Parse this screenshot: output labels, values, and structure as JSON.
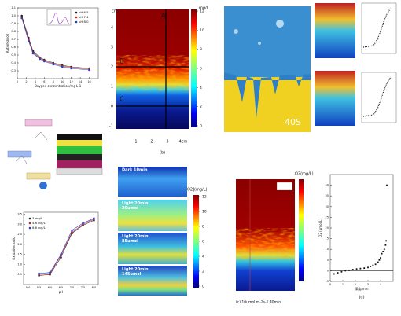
{
  "panels": {
    "oxygen_plot": {
      "x_label": "Oxygen concentration/mg L-1",
      "y_label": "Ratio/Ratio0",
      "xlim": [
        0,
        18
      ],
      "xticks": [
        0,
        2,
        4,
        6,
        8,
        10,
        12,
        14,
        16
      ],
      "ylim": [
        0.2,
        1.1
      ],
      "yticks": [
        0.3,
        0.4,
        0.5,
        0.6,
        0.7,
        0.8,
        0.9,
        {
          "value": 1,
          "label": "1.0"
        },
        1.1
      ],
      "line": true,
      "series": [
        {
          "name": "pH 6.5",
          "color": "#222222",
          "x": [
            1,
            2.5,
            3.5,
            5,
            6,
            8,
            10,
            12,
            16
          ],
          "values": [
            1.0,
            0.72,
            0.55,
            0.47,
            0.44,
            0.4,
            0.37,
            0.35,
            0.33
          ]
        },
        {
          "name": "pH 7.4",
          "color": "#d02020",
          "x": [
            1,
            2.5,
            3.5,
            5,
            6,
            8,
            10,
            12,
            16
          ],
          "values": [
            0.98,
            0.7,
            0.53,
            0.46,
            0.43,
            0.39,
            0.36,
            0.34,
            0.32
          ]
        },
        {
          "name": "pH 8.0",
          "color": "#2040d0",
          "x": [
            1,
            2.5,
            3.5,
            5,
            6,
            8,
            10,
            12,
            16
          ],
          "values": [
            0.97,
            0.68,
            0.52,
            0.45,
            0.42,
            0.38,
            0.35,
            0.33,
            0.31
          ]
        }
      ]
    },
    "ph_plot": {
      "x_label": "pH",
      "y_label": "Oxidation ratio",
      "xlim": [
        4.8,
        8.2
      ],
      "xticks": [
        {
          "value": 5,
          "label": "5.0"
        },
        5.5,
        {
          "value": 6,
          "label": "6.0"
        },
        6.5,
        {
          "value": 7,
          "label": "7.0"
        },
        7.5,
        {
          "value": 8,
          "label": "8.0"
        }
      ],
      "ylim": [
        0,
        3.6
      ],
      "yticks": [
        0.5,
        {
          "value": 1,
          "label": "1.0"
        },
        1.5,
        {
          "value": 2,
          "label": "2.0"
        },
        2.5,
        {
          "value": 3,
          "label": "3.0"
        },
        3.5
      ],
      "line": true,
      "series": [
        {
          "name": "3 mg/L",
          "color": "#222222",
          "x": [
            5.5,
            6.0,
            6.5,
            7.0,
            7.5,
            8.0
          ],
          "values": [
            0.45,
            0.5,
            1.35,
            2.55,
            2.95,
            3.2
          ]
        },
        {
          "name": "4.6 mg/L",
          "color": "#d02020",
          "x": [
            5.5,
            6.0,
            6.5,
            7.0,
            7.5,
            8.0
          ],
          "values": [
            0.5,
            0.55,
            1.45,
            2.6,
            3.0,
            3.25
          ]
        },
        {
          "name": "6.6 mg/L",
          "color": "#2040d0",
          "x": [
            5.5,
            6.0,
            6.5,
            7.0,
            7.5,
            8.0
          ],
          "values": [
            0.55,
            0.6,
            1.5,
            2.7,
            3.05,
            3.3
          ]
        }
      ]
    },
    "profile_plot": {
      "x_label": "深度/mm",
      "y_label": "O2 (μmol/L)",
      "caption": "(d)",
      "xlim": [
        0,
        5
      ],
      "xticks": [
        0,
        1,
        2,
        3,
        4
      ],
      "ylim": [
        -5,
        45
      ],
      "yticks": [
        -5,
        0,
        5,
        10,
        15,
        20,
        25,
        30,
        35,
        40
      ],
      "line": false,
      "series": [
        {
          "color": "#111111",
          "x": [
            0.3,
            0.6,
            0.9,
            1.2,
            1.5,
            1.8,
            2.1,
            2.4,
            2.7,
            3.0,
            3.2,
            3.4,
            3.6,
            3.8,
            3.9,
            4.0,
            4.1,
            4.2,
            4.3,
            4.4,
            4.45,
            4.5
          ],
          "values": [
            -1.5,
            -1,
            -0.5,
            0,
            0.2,
            0.5,
            0.8,
            1,
            1.2,
            1.5,
            2,
            2.5,
            3,
            4,
            5,
            6,
            8,
            9,
            10,
            12,
            14,
            40
          ]
        }
      ]
    },
    "section_map": {
      "labels": [
        "A",
        "B",
        "C"
      ],
      "y_unit": "cm",
      "yticks": [
        "4",
        "3",
        "2",
        "1",
        "0",
        "-1"
      ],
      "xticks": [
        "1",
        "2",
        "3",
        "4cm"
      ],
      "caption": "(b)",
      "colorbar_unit": "mg/L",
      "colorbar_ticks": [
        0,
        2,
        4,
        6,
        8,
        10,
        12
      ]
    },
    "time_image": {
      "label": "40S"
    },
    "light_series": {
      "strips": [
        "Dark 10min",
        "Light 20min\n20umol",
        "Light 20min\n85umol",
        "Light 20min\n145umol"
      ],
      "colorbar_title": "[O2](mg/L)",
      "colorbar_ticks": [
        0,
        2,
        4,
        6,
        8,
        10,
        12
      ]
    },
    "light_map": {
      "colorbar_title": "O2(mg/L)",
      "caption": "(c) 10umol m-2s-1 40min"
    }
  }
}
